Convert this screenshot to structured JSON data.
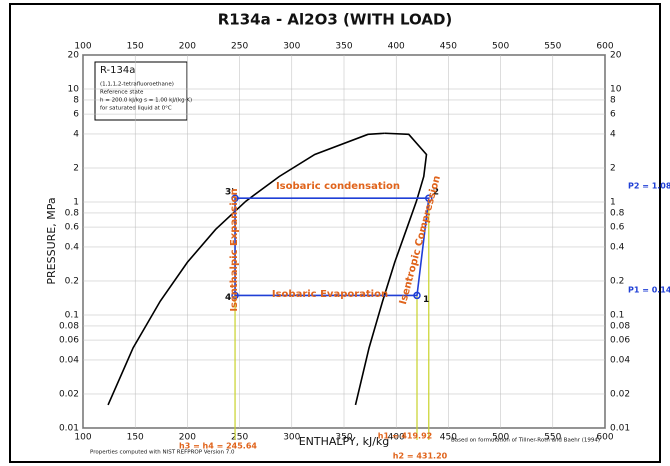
{
  "chart_data": {
    "type": "line",
    "title": "R134a - Al2O3 (WITH LOAD)",
    "x_label": "ENTHALPY, kJ/kg",
    "y_label": "PRESSURE, MPa",
    "xlim": [
      100,
      600
    ],
    "ylim": [
      0.01,
      20
    ],
    "y_scale": "log",
    "grid": true,
    "xticks": [
      100,
      150,
      200,
      250,
      300,
      350,
      400,
      450,
      500,
      550,
      600
    ],
    "yticks": [
      0.01,
      0.02,
      0.04,
      0.06,
      0.08,
      0.1,
      0.2,
      0.4,
      0.6,
      0.8,
      1,
      2,
      4,
      6,
      8,
      10,
      20
    ],
    "x": [
      419.92,
      431.2,
      245.64,
      245.64
    ],
    "values": [
      0.149,
      1.08,
      1.08,
      0.149
    ],
    "point_labels": [
      "1",
      "2",
      "3'",
      "4"
    ],
    "color": "#1f3fd6",
    "saturation": {
      "liquid_h": [
        124,
        148,
        174,
        200,
        227,
        256,
        288,
        322,
        373,
        389
      ],
      "liquid_p": [
        0.016,
        0.0512,
        0.1327,
        0.293,
        0.572,
        1.017,
        1.682,
        2.633,
        3.972,
        4.059
      ],
      "vapor_h": [
        361,
        374,
        387,
        398.6,
        409.8,
        419.4,
        426.4,
        429,
        412,
        389
      ],
      "vapor_p": [
        0.016,
        0.0512,
        0.1327,
        0.293,
        0.572,
        1.017,
        1.682,
        2.633,
        3.972,
        4.059
      ]
    },
    "annotations": [
      "Isobaric condensation",
      "Isobaric Evaporation",
      "Isenthalpic Expansion",
      "Isentropic Compression",
      "P2 = 1.08 MPa",
      "P1 = 0.149",
      "h3 = h4 = 245.64",
      "h1 = 419.92",
      "h2 = 431.20"
    ],
    "info_box": [
      "R-134a",
      "(1,1,1,2-tetrafluoroethane)",
      "Reference state",
      "h = 200.0 kJ/kg  s = 1.00 kJ/(kg·K)",
      "for saturated liquid at 0°C"
    ],
    "footer": [
      "Properties computed with NIST REFPROP Version 7.0",
      "Based on formulation of Tillner-Roth and Baehr (1994)"
    ]
  }
}
